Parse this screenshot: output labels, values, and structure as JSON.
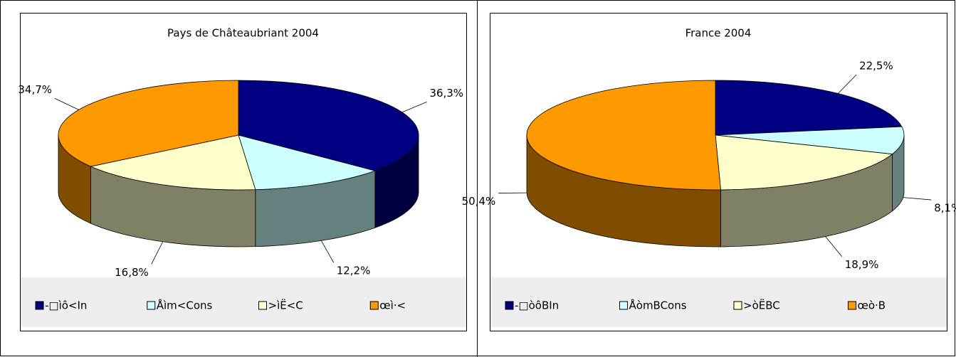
{
  "chart_data": [
    {
      "type": "pie",
      "title": "Pays de Châteaubriant 2004",
      "categories": [
        "-□ìô<In",
        "Åìm<Cons",
        ">ìË<C",
        "œì·<"
      ],
      "values": [
        36.3,
        12.2,
        16.8,
        34.7
      ],
      "value_labels": [
        "36,3%",
        "12,2%",
        "16,8%",
        "34,7%"
      ],
      "colors": [
        "#000080",
        "#ccffff",
        "#ffffcc",
        "#ff9900"
      ],
      "legend": "bottom"
    },
    {
      "type": "pie",
      "title": "France 2004",
      "categories": [
        "-□òôBIn",
        "ÅòmBCons",
        ">òËBC",
        "œò·B"
      ],
      "values": [
        22.5,
        8.1,
        18.9,
        50.4
      ],
      "value_labels": [
        "22,5%",
        "8,1%",
        "18,9%",
        "50,4%"
      ],
      "colors": [
        "#000080",
        "#ccffff",
        "#ffffcc",
        "#ff9900"
      ],
      "legend": "bottom"
    }
  ]
}
